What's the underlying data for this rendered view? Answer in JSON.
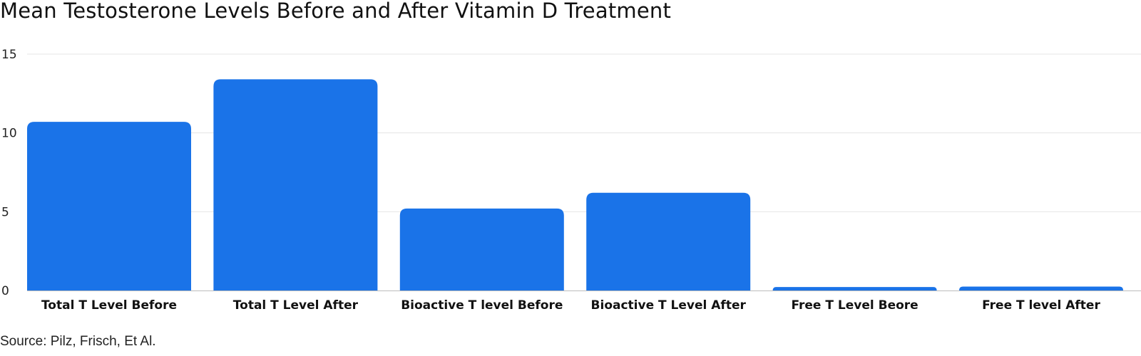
{
  "chart_data": {
    "type": "bar",
    "title": "Mean Testosterone Levels Before and After Vitamin D Treatment",
    "xlabel": "",
    "ylabel": "",
    "categories": [
      "Total T Level Before",
      "Total T Level After",
      "Bioactive T level Before",
      "Bioactive T Level After",
      "Free T Level Beore",
      "Free T level After"
    ],
    "values": [
      10.7,
      13.4,
      5.2,
      6.2,
      0.22,
      0.25
    ],
    "ylim": [
      0,
      15
    ],
    "yticks": [
      "0",
      "5",
      "10",
      "15"
    ],
    "bar_color": "#1a73e8",
    "grid": true,
    "legend": "none",
    "source": "Source: Pilz, Frisch, Et Al."
  }
}
